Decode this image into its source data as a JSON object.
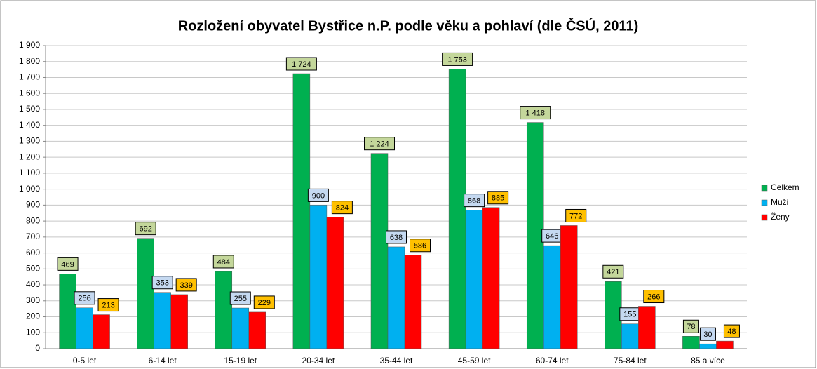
{
  "chart_data": {
    "type": "bar",
    "title": "Rozložení obyvatel Bystřice n.P. podle věku a pohlaví (dle ČSÚ, 2011)",
    "categories": [
      "0-5 let",
      "6-14 let",
      "15-19 let",
      "20-34 let",
      "35-44 let",
      "45-59 let",
      "60-74 let",
      "75-84 let",
      "85 a více"
    ],
    "series": [
      {
        "name": "Celkem",
        "color": "#00b050",
        "label_color": "#c4d79b",
        "values": [
          469,
          692,
          484,
          1724,
          1224,
          1753,
          1418,
          421,
          78
        ],
        "value_labels": [
          "469",
          "692",
          "484",
          "1 724",
          "1 224",
          "1 753",
          "1 418",
          "421",
          "78"
        ]
      },
      {
        "name": "Muži",
        "color": "#00b0f0",
        "label_color": "#c5d9f1",
        "values": [
          256,
          353,
          255,
          900,
          638,
          868,
          646,
          155,
          30
        ]
      },
      {
        "name": "Ženy",
        "color": "#ff0000",
        "label_color": "#ffc000",
        "values": [
          213,
          339,
          229,
          824,
          586,
          885,
          772,
          266,
          48
        ]
      }
    ],
    "ylim": [
      0,
      1900
    ],
    "yticks": [
      0,
      100,
      200,
      300,
      400,
      500,
      600,
      700,
      800,
      900,
      {
        "value": 1000,
        "label": "1 000"
      },
      {
        "value": 1100,
        "label": "1 100"
      },
      {
        "value": 1200,
        "label": "1 200"
      },
      {
        "value": 1300,
        "label": "1 300"
      },
      {
        "value": 1400,
        "label": "1 400"
      },
      {
        "value": 1500,
        "label": "1 500"
      },
      {
        "value": 1600,
        "label": "1 600"
      },
      {
        "value": 1700,
        "label": "1 700"
      },
      {
        "value": 1800,
        "label": "1 800"
      },
      {
        "value": 1900,
        "label": "1 900"
      }
    ],
    "grid": true,
    "legend": "right"
  }
}
